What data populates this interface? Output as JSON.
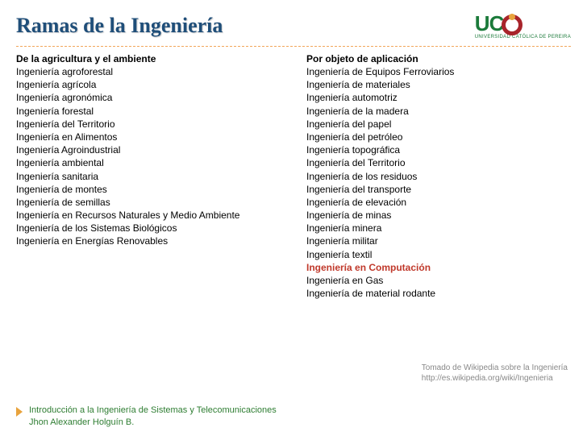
{
  "title": "Ramas de la Ingeniería",
  "logo": {
    "letters": "UC",
    "subtitle": "UNIVERSIDAD CATÓLICA DE PEREIRA"
  },
  "columns": {
    "left": {
      "heading": "De la agricultura y el ambiente",
      "items": [
        "Ingeniería agroforestal",
        "Ingeniería agrícola",
        "Ingeniería agronómica",
        "Ingeniería forestal",
        "Ingeniería del Territorio",
        "Ingeniería en Alimentos",
        "Ingeniería Agroindustrial",
        "Ingeniería ambiental",
        "Ingeniería sanitaria",
        "Ingeniería de montes",
        "Ingeniería de semillas",
        "Ingeniería en Recursos Naturales y Medio Ambiente",
        "Ingeniería de los Sistemas Biológicos",
        "Ingeniería en Energías Renovables"
      ]
    },
    "right": {
      "heading": "Por objeto de aplicación",
      "items": [
        "Ingeniería de Equipos Ferroviarios",
        "Ingeniería de materiales",
        "Ingeniería automotriz",
        "Ingeniería de la madera",
        "Ingeniería del papel",
        "Ingeniería del petróleo",
        "Ingeniería topográfica",
        "Ingeniería del Territorio",
        "Ingeniería de los residuos",
        "Ingeniería del transporte",
        "Ingeniería de elevación",
        "Ingeniería de minas",
        "Ingeniería minera",
        "Ingeniería militar",
        "Ingeniería textil",
        "Ingeniería en Computación",
        "Ingeniería en Gas",
        "Ingeniería de material rodante"
      ],
      "highlight_index": 15
    }
  },
  "source": {
    "line1": "Tomado de Wikipedia sobre la Ingeniería",
    "line2": "http://es.wikipedia.org/wiki/Ingenieria"
  },
  "footer": {
    "line1": "Introducción a la Ingeniería de Sistemas y Telecomunicaciones",
    "line2": "Jhon Alexander Holguín B."
  },
  "colors": {
    "title": "#1f4e79",
    "divider": "#f2a65a",
    "highlight": "#c0392b",
    "footer_text": "#2e7d32",
    "source_text": "#888888",
    "logo_green": "#1b7a3a",
    "logo_red": "#a8242b"
  }
}
